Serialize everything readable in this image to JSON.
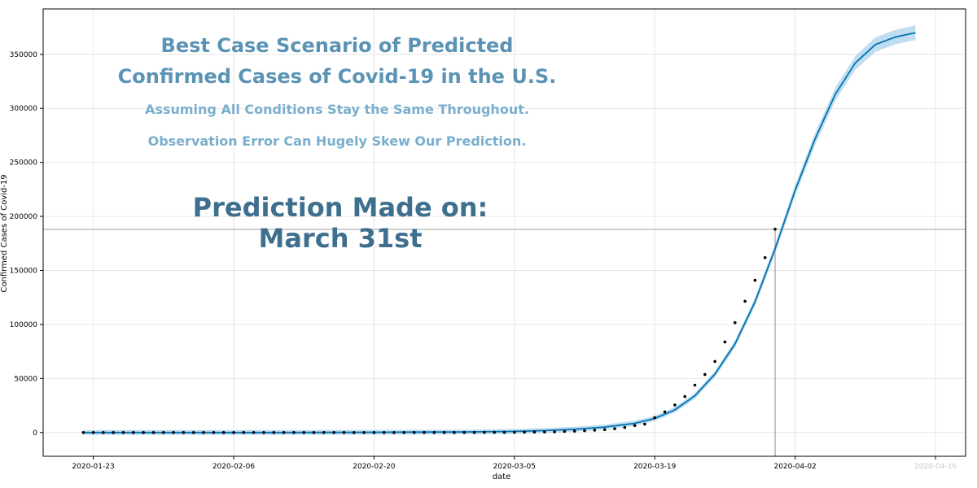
{
  "chart_data": {
    "type": "line",
    "xlabel": "date",
    "ylabel": "Confirmed Cases of Covid-19",
    "ylim": [
      -22000,
      392000
    ],
    "xlim": [
      "2020-01-18",
      "2020-04-19"
    ],
    "grid": true,
    "title_lines": [
      "Best Case Scenario of Predicted",
      "Confirmed Cases of Covid-19 in the U.S."
    ],
    "subtitle_lines": [
      "Assuming All Conditions Stay the Same Throughout.",
      "Observation Error Can Hugely Skew Our Prediction."
    ],
    "annotation_lines": [
      "Prediction Made on:",
      "March 31st"
    ],
    "x_ticks": [
      "2020-01-23",
      "2020-02-06",
      "2020-02-20",
      "2020-03-05",
      "2020-03-19",
      "2020-04-02",
      "2020-04-16"
    ],
    "y_ticks": [
      0,
      50000,
      100000,
      150000,
      200000,
      250000,
      300000,
      350000
    ],
    "reference_lines": {
      "horizontal_value": 188000,
      "vertical_date": "2020-03-31"
    },
    "colors": {
      "forecast": "#0072B2",
      "band": "#8ec2e3",
      "observed": "#000000",
      "title": "#5b93b5",
      "subtitle": "#7aaecd",
      "annotation": "#3f6f8f",
      "reference": "#a0a0a0"
    },
    "series": [
      {
        "type": "scatter",
        "x": [
          "2020-01-22",
          "2020-01-23",
          "2020-01-24",
          "2020-01-25",
          "2020-01-26",
          "2020-01-27",
          "2020-01-28",
          "2020-01-29",
          "2020-01-30",
          "2020-01-31",
          "2020-02-01",
          "2020-02-02",
          "2020-02-03",
          "2020-02-04",
          "2020-02-05",
          "2020-02-06",
          "2020-02-07",
          "2020-02-08",
          "2020-02-09",
          "2020-02-10",
          "2020-02-11",
          "2020-02-12",
          "2020-02-13",
          "2020-02-14",
          "2020-02-15",
          "2020-02-16",
          "2020-02-17",
          "2020-02-18",
          "2020-02-19",
          "2020-02-20",
          "2020-02-21",
          "2020-02-22",
          "2020-02-23",
          "2020-02-24",
          "2020-02-25",
          "2020-02-26",
          "2020-02-27",
          "2020-02-28",
          "2020-02-29",
          "2020-03-01",
          "2020-03-02",
          "2020-03-03",
          "2020-03-04",
          "2020-03-05",
          "2020-03-06",
          "2020-03-07",
          "2020-03-08",
          "2020-03-09",
          "2020-03-10",
          "2020-03-11",
          "2020-03-12",
          "2020-03-13",
          "2020-03-14",
          "2020-03-15",
          "2020-03-16",
          "2020-03-17",
          "2020-03-18",
          "2020-03-19",
          "2020-03-20",
          "2020-03-21",
          "2020-03-22",
          "2020-03-23",
          "2020-03-24",
          "2020-03-25",
          "2020-03-26",
          "2020-03-27",
          "2020-03-28",
          "2020-03-29",
          "2020-03-30",
          "2020-03-31"
        ],
        "values": [
          1,
          1,
          2,
          2,
          5,
          5,
          5,
          5,
          5,
          7,
          8,
          8,
          11,
          11,
          11,
          11,
          11,
          11,
          11,
          11,
          12,
          12,
          13,
          13,
          13,
          13,
          13,
          13,
          13,
          13,
          15,
          15,
          15,
          51,
          51,
          57,
          58,
          60,
          68,
          74,
          98,
          118,
          149,
          217,
          262,
          402,
          518,
          583,
          959,
          1281,
          1663,
          2179,
          2727,
          3499,
          4632,
          6421,
          7783,
          13677,
          19100,
          25489,
          33276,
          43847,
          53740,
          65778,
          83836,
          101657,
          121478,
          140886,
          161807,
          188172
        ]
      },
      {
        "type": "line",
        "x": [
          "2020-01-22",
          "2020-01-30",
          "2020-02-10",
          "2020-02-20",
          "2020-02-29",
          "2020-03-05",
          "2020-03-08",
          "2020-03-11",
          "2020-03-14",
          "2020-03-17",
          "2020-03-19",
          "2020-03-21",
          "2020-03-23",
          "2020-03-25",
          "2020-03-27",
          "2020-03-29",
          "2020-03-31",
          "2020-04-02",
          "2020-04-04",
          "2020-04-06",
          "2020-04-08",
          "2020-04-10",
          "2020-04-12",
          "2020-04-14"
        ],
        "values": [
          0,
          0,
          0,
          200,
          500,
          1000,
          1800,
          3000,
          5000,
          8500,
          13000,
          21000,
          34000,
          54000,
          82000,
          121000,
          170000,
          224000,
          272000,
          313000,
          342000,
          359000,
          366000,
          370000
        ]
      }
    ]
  }
}
